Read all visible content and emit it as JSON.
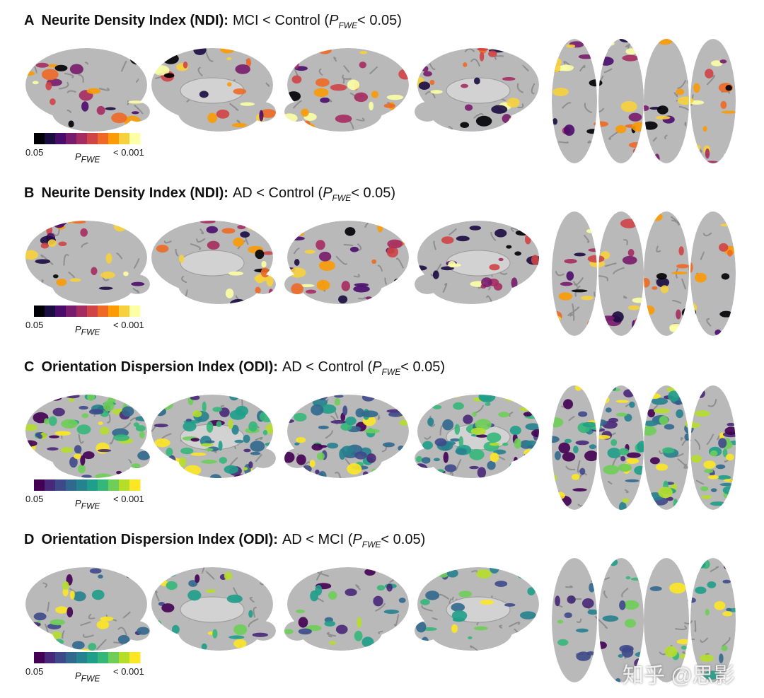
{
  "panels": [
    {
      "letter": "A",
      "title_bold": "Neurite Density Index (NDI):",
      "title_rest": "MCI < Control (",
      "p": "P",
      "p_sub": "FWE",
      "threshold": "< 0.05)",
      "colorbar": {
        "min_label": "0.05",
        "p": "P",
        "p_sub": "FWE",
        "max_label": "< 0.001",
        "colors": [
          "#000004",
          "#1b0c41",
          "#4a0c6b",
          "#781c6d",
          "#a52c60",
          "#cf4446",
          "#ed6925",
          "#fb9b06",
          "#f7d13d",
          "#fcffa4"
        ]
      }
    },
    {
      "letter": "B",
      "title_bold": "Neurite Density Index (NDI):",
      "title_rest": "AD < Control (",
      "p": "P",
      "p_sub": "FWE",
      "threshold": "< 0.05)",
      "colorbar": {
        "min_label": "0.05",
        "p": "P",
        "p_sub": "FWE",
        "max_label": "< 0.001",
        "colors": [
          "#000004",
          "#1b0c41",
          "#4a0c6b",
          "#781c6d",
          "#a52c60",
          "#cf4446",
          "#ed6925",
          "#fb9b06",
          "#f7d13d",
          "#fcffa4"
        ]
      }
    },
    {
      "letter": "C",
      "title_bold": "Orientation Dispersion Index (ODI):",
      "title_rest": "AD < Control (",
      "p": "P",
      "p_sub": "FWE",
      "threshold": "< 0.05)",
      "colorbar": {
        "min_label": "0.05",
        "p": "P",
        "p_sub": "FWE",
        "max_label": "< 0.001",
        "colors": [
          "#440154",
          "#482878",
          "#3e4989",
          "#31688e",
          "#26828e",
          "#1f9e89",
          "#35b779",
          "#6ece58",
          "#b5de2b",
          "#fde725"
        ]
      }
    },
    {
      "letter": "D",
      "title_bold": "Orientation Dispersion Index (ODI):",
      "title_rest": "AD < MCI (",
      "p": "P",
      "p_sub": "FWE",
      "threshold": "< 0.05)",
      "colorbar": {
        "min_label": "0.05",
        "p": "P",
        "p_sub": "FWE",
        "max_label": "< 0.001",
        "colors": [
          "#440154",
          "#482878",
          "#3e4989",
          "#31688e",
          "#26828e",
          "#1f9e89",
          "#35b779",
          "#6ece58",
          "#b5de2b",
          "#fde725"
        ]
      }
    }
  ],
  "watermark": "知乎 @思影"
}
